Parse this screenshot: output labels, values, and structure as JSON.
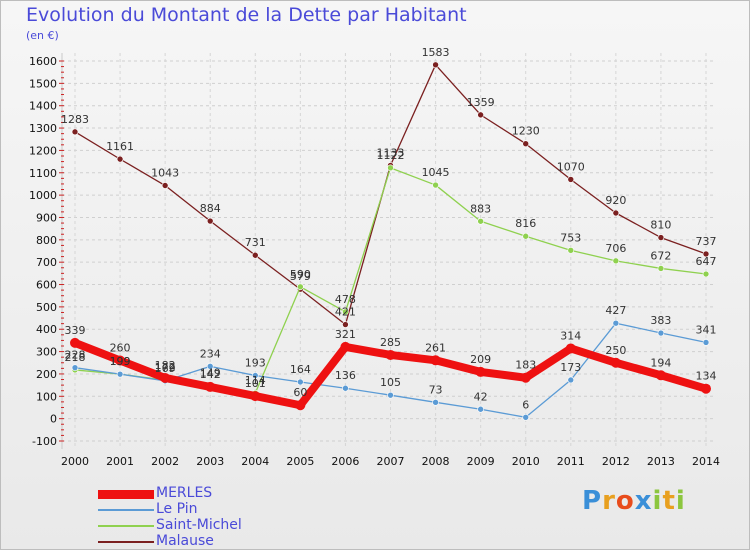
{
  "header": {
    "title": "Evolution du Montant de la Dette par Habitant",
    "subtitle": "(en €)"
  },
  "logo": {
    "letters": [
      "P",
      "r",
      "o",
      "x",
      "i",
      "t",
      "i"
    ],
    "colors": [
      "#3a8fd8",
      "#e8a020",
      "#e84c1c",
      "#3a8fd8",
      "#8cc63f",
      "#e8a020",
      "#8cc63f"
    ]
  },
  "colors": {
    "title": "#4a4ad8",
    "legend_text": "#4a4ad8"
  },
  "chart_data": {
    "type": "line",
    "title": "Evolution du Montant de la Dette par Habitant",
    "subtitle": "(en €)",
    "x": [
      "2000",
      "2001",
      "2002",
      "2003",
      "2004",
      "2005",
      "2006",
      "2007",
      "2008",
      "2009",
      "2010",
      "2011",
      "2012",
      "2013",
      "2014"
    ],
    "ylim": [
      -100,
      1600
    ],
    "yticks": [
      -100,
      0,
      100,
      200,
      300,
      400,
      500,
      600,
      700,
      800,
      900,
      1000,
      1100,
      1200,
      1300,
      1400,
      1500,
      1600
    ],
    "grid": true,
    "legend_position": "bottom-left",
    "series": [
      {
        "name": "MERLES",
        "color": "#ee1111",
        "values": [
          339,
          260,
          182,
          142,
          101,
          60,
          321,
          285,
          261,
          209,
          183,
          314,
          250,
          194,
          134
        ]
      },
      {
        "name": "Le Pin",
        "color": "#5b9bd5",
        "values": [
          228,
          199,
          169,
          234,
          193,
          164,
          136,
          105,
          73,
          42,
          6,
          173,
          427,
          383,
          341
        ]
      },
      {
        "name": "Saint-Michel",
        "color": "#8fd14f",
        "values": [
          218,
          199,
          172,
          149,
          114,
          590,
          478,
          1122,
          1045,
          883,
          816,
          753,
          706,
          672,
          647
        ]
      },
      {
        "name": "Malause",
        "color": "#7b2020",
        "values": [
          1283,
          1161,
          1043,
          884,
          731,
          579,
          421,
          1133,
          1583,
          1359,
          1230,
          1070,
          920,
          810,
          737
        ]
      }
    ]
  }
}
